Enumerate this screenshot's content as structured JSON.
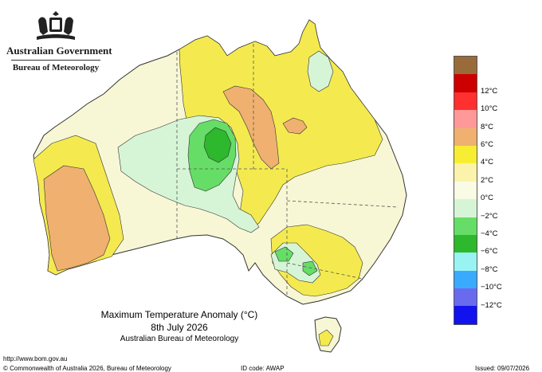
{
  "header": {
    "government": "Australian Government",
    "bureau": "Bureau of Meteorology"
  },
  "title": {
    "line1": "Maximum Temperature Anomaly (°C)",
    "line2": "8th July 2026",
    "line3": "Australian Bureau of Meteorology"
  },
  "footer": {
    "url": "http://www.bom.gov.au",
    "copyright": "© Commonwealth of Australia 2026, Bureau of Meteorology",
    "id_code": "ID code: AWAP",
    "issued": "Issued: 09/07/2026"
  },
  "legend": {
    "items": [
      {
        "label": "",
        "color": "#9a6b3a"
      },
      {
        "label": "12°C",
        "color": "#cc0000"
      },
      {
        "label": "10°C",
        "color": "#ff3030"
      },
      {
        "label": "8°C",
        "color": "#ff9999"
      },
      {
        "label": "6°C",
        "color": "#f0b070"
      },
      {
        "label": "4°C",
        "color": "#f7ee33"
      },
      {
        "label": "2°C",
        "color": "#fbf3ab"
      },
      {
        "label": "0°C",
        "color": "#fafbe5"
      },
      {
        "label": "−2°C",
        "color": "#d6f5d6"
      },
      {
        "label": "−4°C",
        "color": "#66dd66"
      },
      {
        "label": "−6°C",
        "color": "#2db82d"
      },
      {
        "label": "−8°C",
        "color": "#99f3f3"
      },
      {
        "label": "−10°C",
        "color": "#3aaaff"
      },
      {
        "label": "−12°C",
        "color": "#6a6aee"
      },
      {
        "label": "",
        "color": "#1212ee"
      }
    ]
  },
  "map_colors": {
    "land_neutral": "#f8f7d5",
    "warm_2": "#f4ea50",
    "warm_4": "#f0b070",
    "cool_2": "#d6f5d6",
    "cool_4": "#66dd66",
    "cool_6": "#2db82d",
    "outline": "#333333"
  }
}
